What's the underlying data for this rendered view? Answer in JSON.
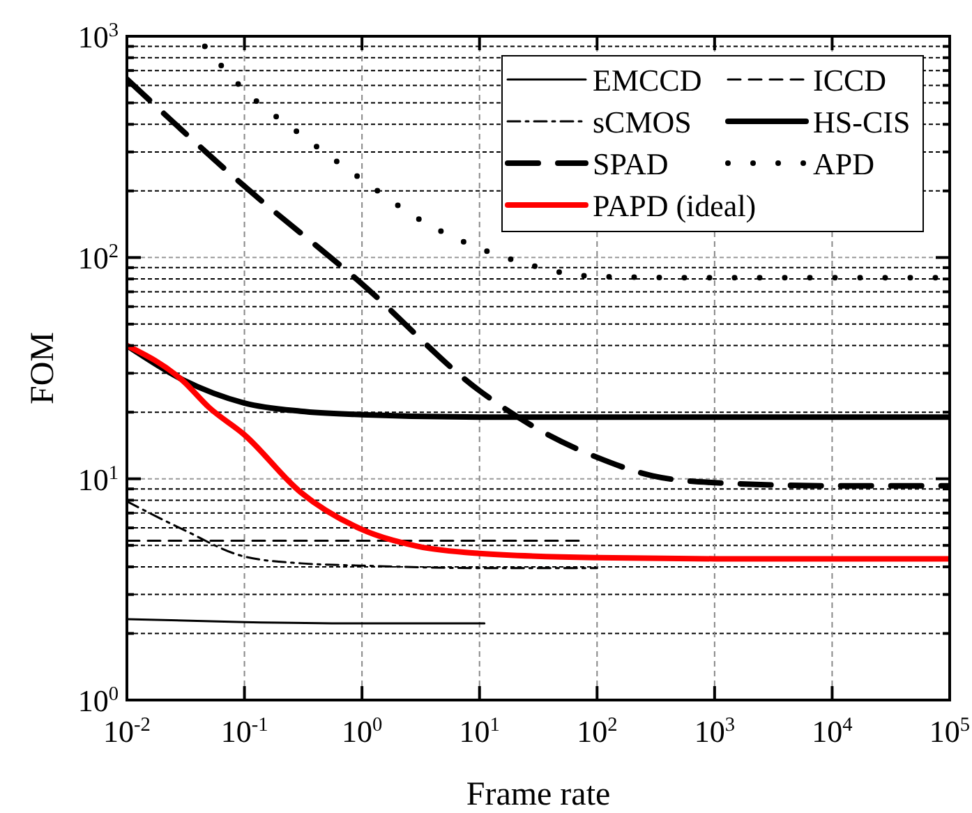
{
  "chart_data": {
    "type": "line",
    "xlabel": "Frame rate",
    "ylabel": "FOM",
    "log": "xy",
    "grid": true,
    "legend": "top right",
    "xlim": [
      0.01,
      100000
    ],
    "ylim": [
      1,
      1000
    ],
    "xticks": [
      {
        "value": 0.01,
        "label": "10$^{-2}$"
      },
      {
        "value": 0.1,
        "label": "10$^{-1}$"
      },
      {
        "value": 1,
        "label": "10$^{0}$"
      },
      {
        "value": 10,
        "label": "10$^{1}$"
      },
      {
        "value": 100,
        "label": "10$^{2}$"
      },
      {
        "value": 1000,
        "label": "10$^{3}$"
      },
      {
        "value": 10000,
        "label": "10$^{4}$"
      },
      {
        "value": 100000,
        "label": "10$^{5}$"
      }
    ],
    "yticks": [
      {
        "value": 1,
        "label": "10$^{0}$"
      },
      {
        "value": 2,
        "label": null
      },
      {
        "value": 3,
        "label": null
      },
      {
        "value": 4,
        "label": null
      },
      {
        "value": 5,
        "label": null
      },
      {
        "value": 6,
        "label": null
      },
      {
        "value": 7,
        "label": null
      },
      {
        "value": 8,
        "label": null
      },
      {
        "value": 9,
        "label": null
      },
      {
        "value": 10,
        "label": "10$^{1}$"
      },
      {
        "value": 20,
        "label": null
      },
      {
        "value": 30,
        "label": null
      },
      {
        "value": 40,
        "label": null
      },
      {
        "value": 50,
        "label": null
      },
      {
        "value": 60,
        "label": null
      },
      {
        "value": 70,
        "label": null
      },
      {
        "value": 80,
        "label": null
      },
      {
        "value": 90,
        "label": null
      },
      {
        "value": 100,
        "label": "10$^{2}$"
      },
      {
        "value": 200,
        "label": null
      },
      {
        "value": 300,
        "label": null
      },
      {
        "value": 400,
        "label": null
      },
      {
        "value": 500,
        "label": null
      },
      {
        "value": 600,
        "label": null
      },
      {
        "value": 700,
        "label": null
      },
      {
        "value": 800,
        "label": null
      },
      {
        "value": 900,
        "label": null
      },
      {
        "value": 1000,
        "label": "10$^{3}$"
      }
    ],
    "series": [
      {
        "name": "EMCCD",
        "color": "#000000",
        "line_style": "solid",
        "x": [
          0.01,
          0.1,
          1,
          11
        ],
        "values": [
          2.32,
          2.25,
          2.22,
          2.22
        ]
      },
      {
        "name": "ICCD",
        "color": "#000000",
        "line_style": "dashed",
        "x": [
          0.01,
          1,
          80
        ],
        "values": [
          5.25,
          5.25,
          5.25
        ]
      },
      {
        "name": "sCMOS",
        "color": "#000000",
        "line_style": "dashdot",
        "x": [
          0.01,
          0.03,
          0.1,
          0.3,
          1,
          10,
          100
        ],
        "values": [
          7.9,
          5.9,
          4.45,
          4.15,
          4.05,
          3.95,
          3.95
        ]
      },
      {
        "name": "HS-CIS",
        "color": "#000000",
        "line_style": "solid",
        "x": [
          0.01,
          0.03,
          0.1,
          0.3,
          1,
          10,
          100,
          100000
        ],
        "values": [
          40,
          28,
          22,
          20.2,
          19.5,
          19,
          19,
          19
        ]
      },
      {
        "name": "SPAD",
        "color": "#000000",
        "line_style": "dashed",
        "x": [
          0.01,
          0.1,
          1,
          10,
          30,
          100,
          300,
          1000,
          10000,
          100000
        ],
        "values": [
          640,
          210,
          76,
          25,
          17,
          12.5,
          10.3,
          9.6,
          9.3,
          9.3
        ]
      },
      {
        "name": "APD",
        "color": "#000000",
        "line_style": "dotted",
        "x": [
          0.046,
          0.1,
          0.3,
          1,
          3,
          10,
          20,
          100,
          1000,
          100000
        ],
        "values": [
          900,
          570,
          360,
          225,
          150,
          110,
          97,
          82,
          81,
          81
        ]
      },
      {
        "name": "PAPD (ideal)",
        "color": "#ff0000",
        "line_style": "solid",
        "x": [
          0.01,
          0.03,
          0.05,
          0.1,
          0.3,
          1,
          3,
          10,
          100,
          1000,
          100000
        ],
        "values": [
          40,
          27.7,
          21,
          15.8,
          8.7,
          5.9,
          4.95,
          4.6,
          4.4,
          4.35,
          4.35
        ]
      }
    ]
  }
}
